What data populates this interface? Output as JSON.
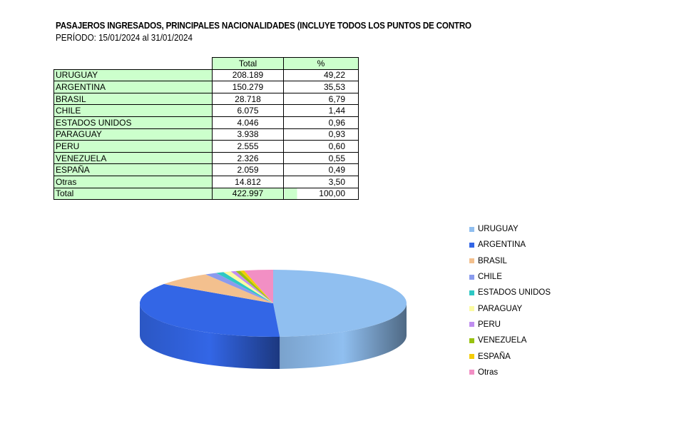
{
  "header": {
    "title": "PASAJEROS INGRESADOS, PRINCIPALES NACIONALIDADES (INCLUYE TODOS LOS PUNTOS DE CONTRO",
    "subtitle": "PERÍODO: 15/01/2024 al 31/01/2024"
  },
  "table": {
    "col_total": "Total",
    "col_pct": "%",
    "rows": [
      {
        "name": "URUGUAY",
        "total": "208.189",
        "pct": "49,22"
      },
      {
        "name": "ARGENTINA",
        "total": "150.279",
        "pct": "35,53"
      },
      {
        "name": "BRASIL",
        "total": "28.718",
        "pct": "6,79"
      },
      {
        "name": "CHILE",
        "total": "6.075",
        "pct": "1,44"
      },
      {
        "name": "ESTADOS UNIDOS",
        "total": "4.046",
        "pct": "0,96"
      },
      {
        "name": "PARAGUAY",
        "total": "3.938",
        "pct": "0,93"
      },
      {
        "name": "PERU",
        "total": "2.555",
        "pct": "0,60"
      },
      {
        "name": "VENEZUELA",
        "total": "2.326",
        "pct": "0,55"
      },
      {
        "name": "ESPAÑA",
        "total": "2.059",
        "pct": "0,49"
      },
      {
        "name": "Otras",
        "total": "14.812",
        "pct": "3,50"
      }
    ],
    "total_row": {
      "name": "Total",
      "total": "422.997",
      "pct": "100,00"
    }
  },
  "chart_data": {
    "type": "pie",
    "style": "3d",
    "categories": [
      "URUGUAY",
      "ARGENTINA",
      "BRASIL",
      "CHILE",
      "ESTADOS UNIDOS",
      "PARAGUAY",
      "PERU",
      "VENEZUELA",
      "ESPAÑA",
      "Otras"
    ],
    "values": [
      208189,
      150279,
      28718,
      6075,
      4046,
      3938,
      2555,
      2326,
      2059,
      14812
    ],
    "colors": [
      "#90bff0",
      "#3366e6",
      "#f3c08e",
      "#8a9bee",
      "#2ec8c4",
      "#fbfba2",
      "#c08ef0",
      "#98c20f",
      "#f4cc06",
      "#f28fc4"
    ],
    "legend_position": "right"
  }
}
